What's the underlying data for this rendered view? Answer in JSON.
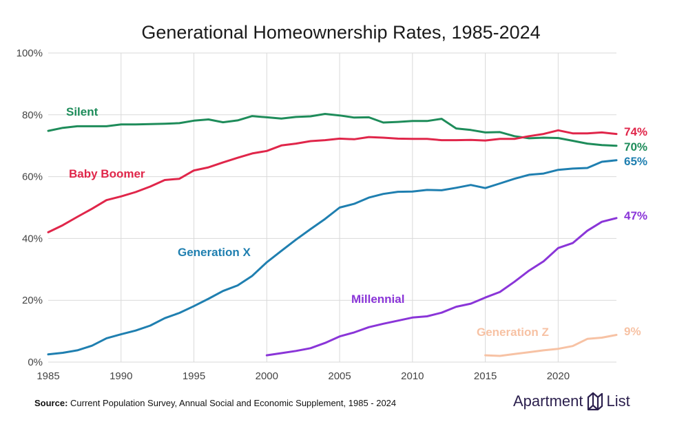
{
  "chart_data": {
    "type": "line",
    "title": "Generational Homeownership Rates, 1985-2024",
    "xlabel": "",
    "ylabel": "",
    "xlim": [
      1985,
      2024
    ],
    "ylim": [
      0,
      100
    ],
    "x_ticks": [
      1985,
      1990,
      1995,
      2000,
      2005,
      2010,
      2015,
      2020
    ],
    "y_ticks": [
      "0%",
      "20%",
      "40%",
      "60%",
      "80%",
      "100%"
    ],
    "y_tick_values": [
      0,
      20,
      40,
      60,
      80,
      100
    ],
    "grid": true,
    "series": [
      {
        "name": "Silent",
        "color": "#1e8c5a",
        "end_label": "70%",
        "x": [
          1985,
          1986,
          1987,
          1988,
          1989,
          1990,
          1991,
          1992,
          1993,
          1994,
          1995,
          1996,
          1997,
          1998,
          1999,
          2000,
          2001,
          2002,
          2003,
          2004,
          2005,
          2006,
          2007,
          2008,
          2009,
          2010,
          2011,
          2012,
          2013,
          2014,
          2015,
          2016,
          2017,
          2018,
          2019,
          2020,
          2021,
          2022,
          2023,
          2024
        ],
        "values": [
          74.8,
          75.8,
          76.3,
          76.3,
          76.3,
          76.9,
          76.9,
          77.0,
          77.1,
          77.3,
          78.1,
          78.5,
          77.6,
          78.2,
          79.6,
          79.2,
          78.8,
          79.3,
          79.5,
          80.3,
          79.8,
          79.1,
          79.2,
          77.5,
          77.7,
          78.0,
          78.0,
          78.7,
          75.6,
          75.1,
          74.3,
          74.4,
          73.1,
          72.4,
          72.6,
          72.5,
          71.6,
          70.7,
          70.2,
          70.0
        ]
      },
      {
        "name": "Baby Boomer",
        "color": "#e0264a",
        "end_label": "74%",
        "x": [
          1985,
          1986,
          1987,
          1988,
          1989,
          1990,
          1991,
          1992,
          1993,
          1994,
          1995,
          1996,
          1997,
          1998,
          1999,
          2000,
          2001,
          2002,
          2003,
          2004,
          2005,
          2006,
          2007,
          2008,
          2009,
          2010,
          2011,
          2012,
          2013,
          2014,
          2015,
          2016,
          2017,
          2018,
          2019,
          2020,
          2021,
          2022,
          2023,
          2024
        ],
        "values": [
          42.0,
          44.3,
          47.0,
          49.6,
          52.4,
          53.6,
          55.0,
          56.8,
          58.9,
          59.3,
          62.0,
          63.0,
          64.6,
          66.1,
          67.5,
          68.3,
          70.1,
          70.7,
          71.5,
          71.8,
          72.3,
          72.1,
          72.8,
          72.6,
          72.3,
          72.2,
          72.2,
          71.8,
          71.8,
          71.9,
          71.7,
          72.2,
          72.2,
          73.1,
          73.8,
          75.0,
          74.0,
          74.0,
          74.3,
          73.8
        ]
      },
      {
        "name": "Generation X",
        "color": "#1f7fb0",
        "end_label": "65%",
        "x": [
          1985,
          1986,
          1987,
          1988,
          1989,
          1990,
          1991,
          1992,
          1993,
          1994,
          1995,
          1996,
          1997,
          1998,
          1999,
          2000,
          2001,
          2002,
          2003,
          2004,
          2005,
          2006,
          2007,
          2008,
          2009,
          2010,
          2011,
          2012,
          2013,
          2014,
          2015,
          2016,
          2017,
          2018,
          2019,
          2020,
          2021,
          2022,
          2023,
          2024
        ],
        "values": [
          2.5,
          3.0,
          3.8,
          5.3,
          7.7,
          9.0,
          10.2,
          11.8,
          14.2,
          15.9,
          18.1,
          20.5,
          23.0,
          24.8,
          27.9,
          32.3,
          36.0,
          39.6,
          43.0,
          46.3,
          50.0,
          51.2,
          53.2,
          54.4,
          55.1,
          55.2,
          55.7,
          55.6,
          56.4,
          57.3,
          56.3,
          57.8,
          59.3,
          60.6,
          61.0,
          62.2,
          62.6,
          62.8,
          64.8,
          65.3
        ]
      },
      {
        "name": "Millennial",
        "color": "#8a35d8",
        "end_label": "47%",
        "x": [
          2000,
          2001,
          2002,
          2003,
          2004,
          2005,
          2006,
          2007,
          2008,
          2009,
          2010,
          2011,
          2012,
          2013,
          2014,
          2015,
          2016,
          2017,
          2018,
          2019,
          2020,
          2021,
          2022,
          2023,
          2024
        ],
        "values": [
          2.2,
          2.9,
          3.6,
          4.5,
          6.2,
          8.3,
          9.6,
          11.3,
          12.4,
          13.4,
          14.4,
          14.8,
          16.0,
          17.9,
          18.9,
          20.9,
          22.7,
          26.0,
          29.6,
          32.6,
          36.9,
          38.5,
          42.5,
          45.4,
          46.6
        ]
      },
      {
        "name": "Generation Z",
        "color": "#f7c2a4",
        "end_label": "9%",
        "x": [
          2015,
          2016,
          2017,
          2018,
          2019,
          2020,
          2021,
          2022,
          2023,
          2024
        ],
        "values": [
          2.2,
          2.0,
          2.6,
          3.2,
          3.8,
          4.3,
          5.2,
          7.5,
          7.9,
          8.8
        ]
      }
    ]
  },
  "footer": {
    "source_label": "Source:",
    "source_text": "Current Population Survey, Annual Social and Economic Supplement, 1985 - 2024"
  },
  "logo": {
    "left_text": "Apartment",
    "right_text": "List",
    "color": "#2b1f4d"
  }
}
